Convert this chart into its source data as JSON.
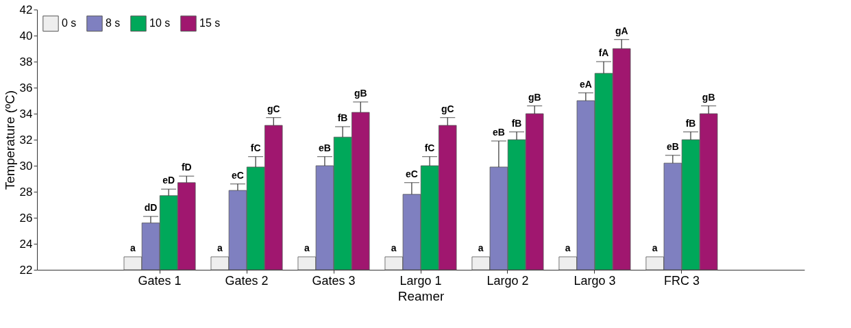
{
  "chart_data": {
    "type": "bar",
    "xlabel": "Reamer",
    "ylabel": "Temperature (ºC)",
    "categories": [
      "Gates 1",
      "Gates 2",
      "Gates 3",
      "Largo 1",
      "Largo 2",
      "Largo 3",
      "FRC 3"
    ],
    "series": [
      {
        "name": "0 s",
        "color": "#eeeeee",
        "values": [
          23,
          23,
          23,
          23,
          23,
          23,
          23
        ],
        "value_labels": [
          "a",
          "a",
          "a",
          "a",
          "a",
          "a",
          "a"
        ]
      },
      {
        "name": "8 s",
        "color": "#7f80c0",
        "values": [
          25.6,
          28.1,
          30.0,
          27.8,
          29.9,
          35.0,
          30.2
        ],
        "errors": [
          0.5,
          0.5,
          0.7,
          0.9,
          2.0,
          0.6,
          0.6
        ],
        "value_labels": [
          "dD",
          "eC",
          "eB",
          "eC",
          "eB",
          "eA",
          "eB"
        ]
      },
      {
        "name": "10 s",
        "color": "#00a85a",
        "values": [
          27.7,
          29.9,
          32.2,
          30.0,
          32.0,
          37.1,
          32.0
        ],
        "errors": [
          0.5,
          0.8,
          0.8,
          0.7,
          0.6,
          0.9,
          0.6
        ],
        "value_labels": [
          "eD",
          "fC",
          "fB",
          "fC",
          "fB",
          "fA",
          "fB"
        ]
      },
      {
        "name": "15 s",
        "color": "#a0176f",
        "values": [
          28.7,
          33.1,
          34.1,
          33.1,
          34.0,
          39.0,
          34.0
        ],
        "errors": [
          0.5,
          0.6,
          0.8,
          0.6,
          0.6,
          0.7,
          0.6
        ],
        "value_labels": [
          "fD",
          "gC",
          "gB",
          "gC",
          "gB",
          "gA",
          "gB"
        ]
      }
    ],
    "ylim": [
      22,
      42
    ],
    "yticks": [
      22,
      24,
      26,
      28,
      30,
      32,
      34,
      36,
      38,
      40,
      42
    ],
    "grid": false,
    "legend": "top left"
  }
}
